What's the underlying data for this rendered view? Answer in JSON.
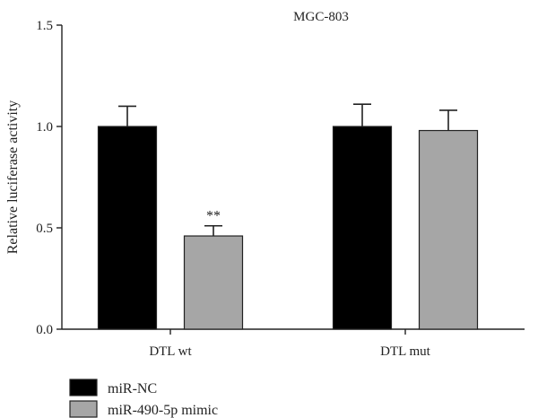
{
  "chart_data": {
    "type": "bar",
    "title": "MGC-803",
    "xlabel": "",
    "ylabel": "Relative luciferase activity",
    "ylim": [
      0,
      1.5
    ],
    "yticks": [
      0.0,
      0.5,
      1.0,
      1.5
    ],
    "ytick_labels": [
      "0.0",
      "0.5",
      "1.0",
      "1.5"
    ],
    "categories": [
      "DTL wt",
      "DTL mut"
    ],
    "series": [
      {
        "name": "miR-NC",
        "values": [
          1.0,
          1.0
        ],
        "errors": [
          0.1,
          0.11
        ],
        "color": "#000000"
      },
      {
        "name": "miR-490-5p mimic",
        "values": [
          0.46,
          0.98
        ],
        "errors": [
          0.05,
          0.1
        ],
        "color": "#a6a6a6"
      }
    ],
    "annotations": [
      {
        "text": "**",
        "category": "DTL wt",
        "series": "miR-490-5p mimic"
      }
    ],
    "grid": false,
    "legend_position": "bottom-left"
  }
}
